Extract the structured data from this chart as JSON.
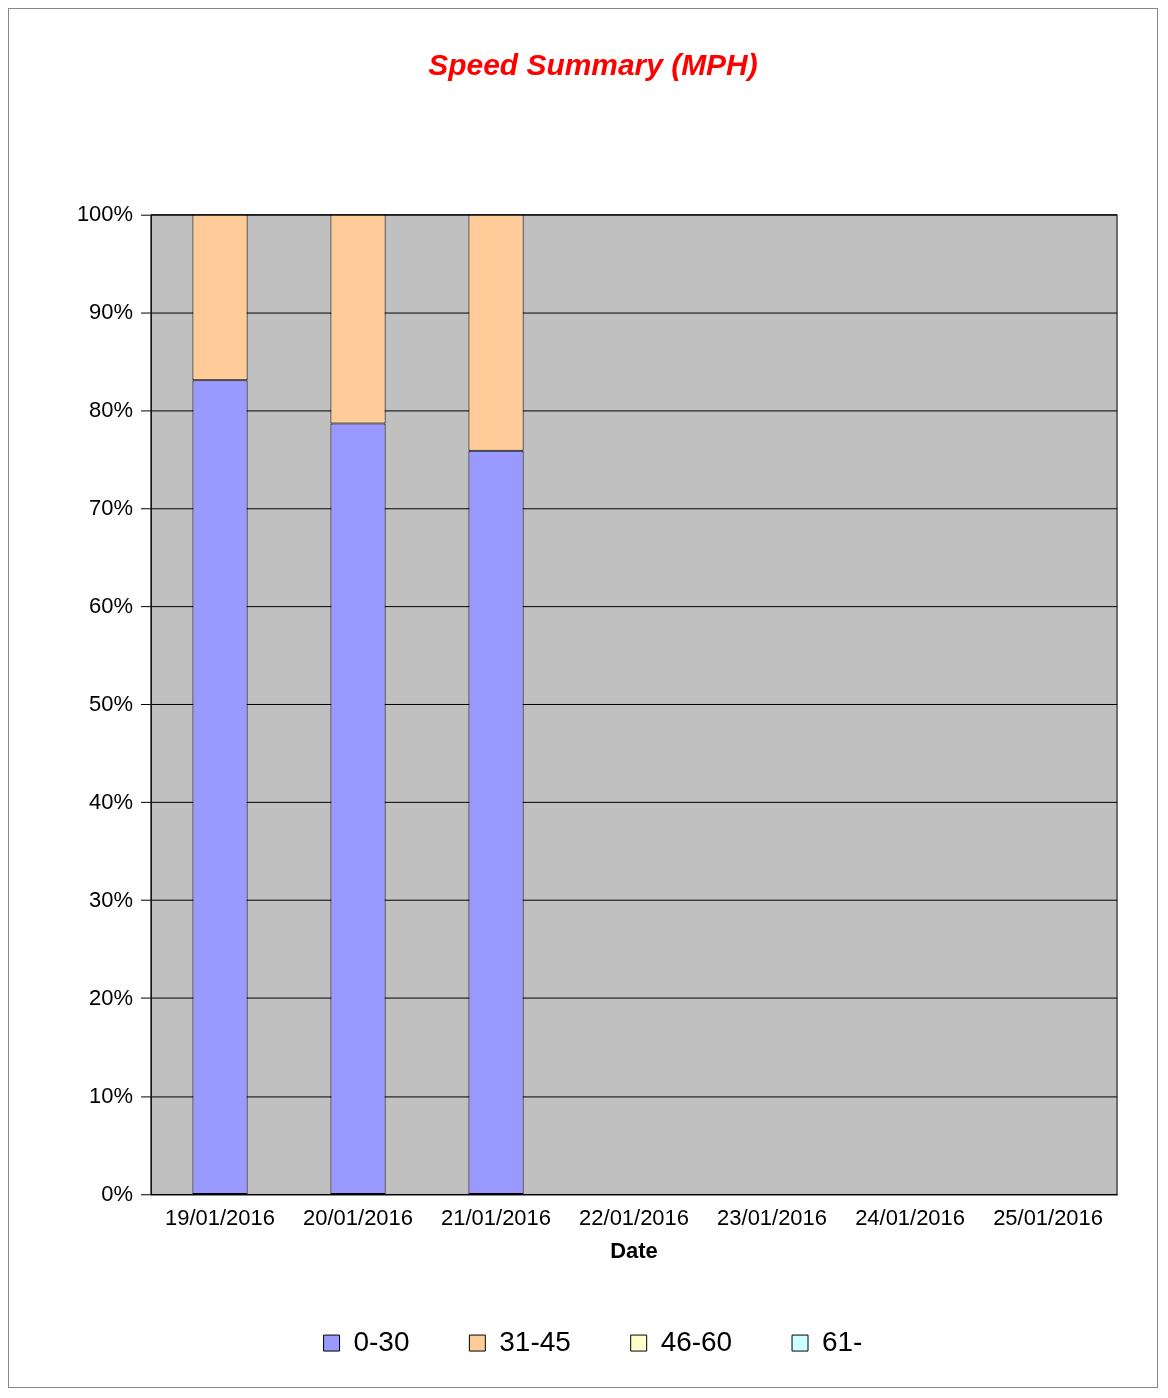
{
  "chart_data": {
    "type": "bar",
    "title": "Speed Summary (MPH)",
    "xlabel": "Date",
    "stacked": true,
    "categories": [
      "19/01/2016",
      "20/01/2016",
      "21/01/2016",
      "22/01/2016",
      "23/01/2016",
      "24/01/2016",
      "25/01/2016"
    ],
    "series": [
      {
        "name": "0-30",
        "color": "#9999ff",
        "values": [
          83.1,
          78.7,
          75.9,
          0,
          0,
          0,
          0
        ]
      },
      {
        "name": "31-45",
        "color": "#ffcc99",
        "values": [
          16.9,
          21.3,
          24.1,
          0,
          0,
          0,
          0
        ]
      },
      {
        "name": "46-60",
        "color": "#ffffcc",
        "values": [
          0,
          0,
          0,
          0,
          0,
          0,
          0
        ]
      },
      {
        "name": "61-",
        "color": "#ccffff",
        "values": [
          0,
          0,
          0,
          0,
          0,
          0,
          0
        ]
      }
    ],
    "ylim": [
      0,
      100
    ],
    "yticks": [
      {
        "value": 0,
        "label": "0%"
      },
      {
        "value": 10,
        "label": "10%"
      },
      {
        "value": 20,
        "label": "20%"
      },
      {
        "value": 30,
        "label": "30%"
      },
      {
        "value": 40,
        "label": "40%"
      },
      {
        "value": 50,
        "label": "50%"
      },
      {
        "value": 60,
        "label": "60%"
      },
      {
        "value": 70,
        "label": "70%"
      },
      {
        "value": 80,
        "label": "80%"
      },
      {
        "value": 90,
        "label": "90%"
      },
      {
        "value": 100,
        "label": "100%"
      }
    ],
    "grid": "y",
    "legend": "bottom"
  }
}
